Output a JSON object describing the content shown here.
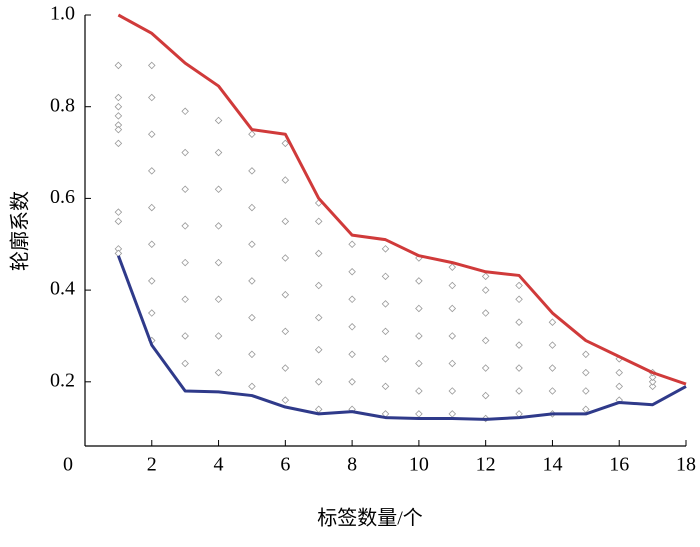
{
  "chart_data": {
    "type": "scatter-line",
    "xlabel": "标签数量/个",
    "ylabel": "轮廓系数",
    "xlim": [
      0,
      18
    ],
    "ylim": [
      0.06,
      1.0
    ],
    "xticks": [
      0,
      2,
      4,
      6,
      8,
      10,
      12,
      14,
      16,
      18
    ],
    "yticks": [
      0.2,
      0.4,
      0.6,
      0.8,
      {
        "value": 1,
        "label": "1.0"
      }
    ],
    "x": [
      1,
      2,
      3,
      4,
      5,
      6,
      7,
      8,
      9,
      10,
      11,
      12,
      13,
      14,
      15,
      16,
      17,
      18
    ],
    "series": [
      {
        "type": "scatter",
        "color": "#9a9a9a",
        "x": [
          1,
          1,
          1,
          1,
          1,
          1,
          1,
          1,
          1,
          1,
          1,
          2,
          2,
          2,
          2,
          2,
          2,
          2,
          2,
          2,
          3,
          3,
          3,
          3,
          3,
          3,
          3,
          3,
          4,
          4,
          4,
          4,
          4,
          4,
          4,
          4,
          5,
          5,
          5,
          5,
          5,
          5,
          5,
          5,
          6,
          6,
          6,
          6,
          6,
          6,
          6,
          6,
          7,
          7,
          7,
          7,
          7,
          7,
          7,
          7,
          8,
          8,
          8,
          8,
          8,
          8,
          8,
          9,
          9,
          9,
          9,
          9,
          9,
          9,
          10,
          10,
          10,
          10,
          10,
          10,
          10,
          11,
          11,
          11,
          11,
          11,
          11,
          11,
          12,
          12,
          12,
          12,
          12,
          12,
          12,
          13,
          13,
          13,
          13,
          13,
          13,
          13,
          14,
          14,
          14,
          14,
          14,
          15,
          15,
          15,
          15,
          16,
          16,
          16,
          16,
          17,
          17,
          17,
          17
        ],
        "values": [
          0.89,
          0.82,
          0.8,
          0.78,
          0.76,
          0.75,
          0.72,
          0.57,
          0.55,
          0.49,
          0.48,
          0.29,
          0.35,
          0.42,
          0.5,
          0.58,
          0.66,
          0.74,
          0.82,
          0.89,
          0.24,
          0.3,
          0.38,
          0.46,
          0.54,
          0.62,
          0.7,
          0.79,
          0.22,
          0.3,
          0.38,
          0.46,
          0.54,
          0.62,
          0.7,
          0.77,
          0.19,
          0.26,
          0.34,
          0.42,
          0.5,
          0.58,
          0.66,
          0.74,
          0.16,
          0.23,
          0.31,
          0.39,
          0.47,
          0.55,
          0.64,
          0.72,
          0.14,
          0.2,
          0.27,
          0.34,
          0.41,
          0.48,
          0.55,
          0.59,
          0.14,
          0.2,
          0.26,
          0.32,
          0.38,
          0.44,
          0.5,
          0.13,
          0.19,
          0.25,
          0.31,
          0.37,
          0.43,
          0.49,
          0.13,
          0.18,
          0.24,
          0.3,
          0.36,
          0.42,
          0.47,
          0.13,
          0.18,
          0.24,
          0.3,
          0.36,
          0.41,
          0.45,
          0.12,
          0.17,
          0.23,
          0.29,
          0.35,
          0.4,
          0.43,
          0.13,
          0.18,
          0.23,
          0.28,
          0.33,
          0.38,
          0.41,
          0.13,
          0.18,
          0.23,
          0.28,
          0.33,
          0.14,
          0.18,
          0.22,
          0.26,
          0.16,
          0.19,
          0.22,
          0.25,
          0.19,
          0.2,
          0.21,
          0.22
        ]
      },
      {
        "type": "line",
        "color": "#d03a3a",
        "values": [
          1.0,
          0.96,
          0.895,
          0.845,
          0.75,
          0.74,
          0.6,
          0.52,
          0.51,
          0.475,
          0.46,
          0.44,
          0.432,
          0.35,
          0.29,
          0.255,
          0.22,
          0.195
        ]
      },
      {
        "type": "line",
        "color": "#2f3a8a",
        "values": [
          0.475,
          0.28,
          0.18,
          0.178,
          0.17,
          0.145,
          0.13,
          0.135,
          0.122,
          0.12,
          0.12,
          0.118,
          0.122,
          0.13,
          0.13,
          0.155,
          0.15,
          0.19
        ]
      }
    ]
  }
}
